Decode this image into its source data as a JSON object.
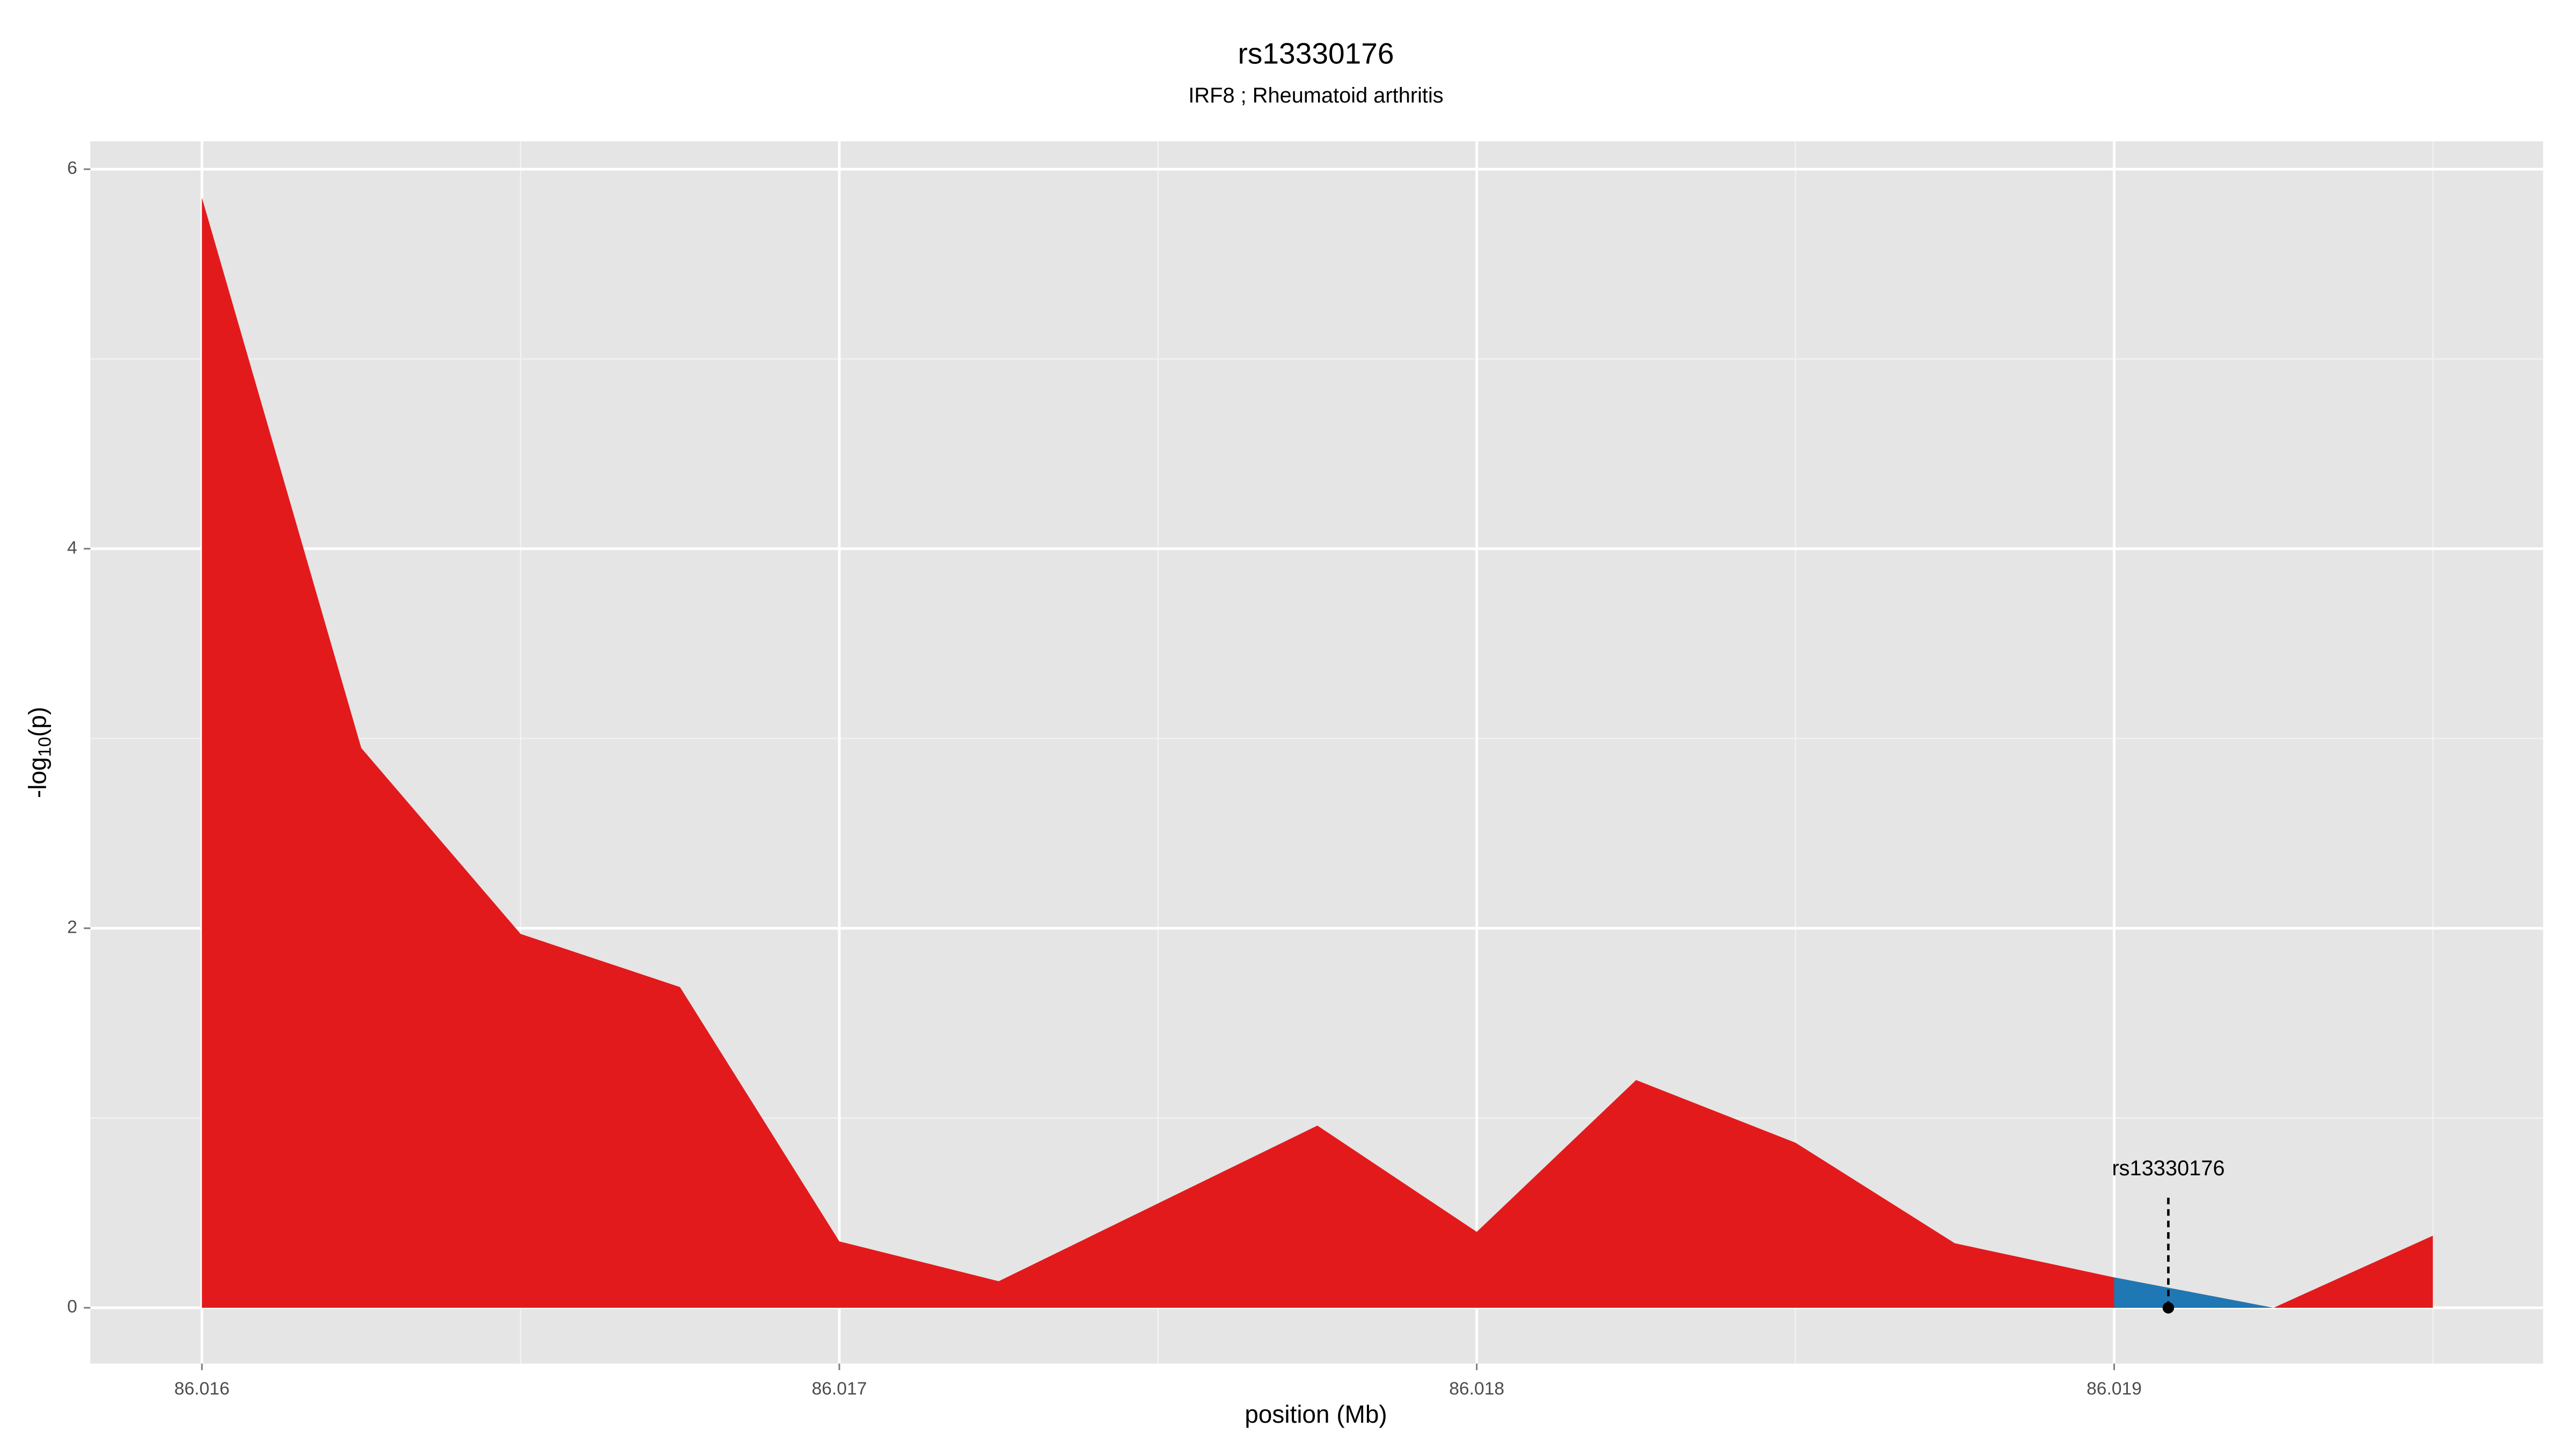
{
  "chart_data": {
    "type": "area",
    "title": "rs13330176",
    "subtitle": "IRF8 ; Rheumatoid arthritis",
    "x_label": "position (Mb)",
    "y_label": "-log",
    "y_label_sub": "10",
    "y_label_end": "(p)",
    "x": [
      86.016,
      86.01625,
      86.0165,
      86.01675,
      86.017,
      86.01725,
      86.0175,
      86.01775,
      86.018,
      86.01825,
      86.0185,
      86.01875,
      86.019,
      86.01925,
      86.0195
    ],
    "series": [
      {
        "color": "#e31a1c",
        "values": [
          5.85,
          2.95,
          1.97,
          1.69,
          0.35,
          0.14,
          0.55,
          0.96,
          0.4,
          1.2,
          0.87,
          0.34,
          0.16,
          0.0,
          0.38
        ]
      },
      {
        "color": "#1f78b4",
        "values": [
          null,
          null,
          null,
          null,
          null,
          null,
          null,
          null,
          null,
          null,
          null,
          null,
          0.16,
          0.0,
          null
        ]
      }
    ],
    "annotation": {
      "text": "rs13330176",
      "x": 86.019085,
      "y": 0
    },
    "xlim": [
      86.015825,
      86.019673
    ],
    "ylim": [
      -0.294,
      6.147
    ],
    "xticks": [
      86.016,
      86.017,
      86.018,
      86.019
    ],
    "yticks": [
      0,
      2,
      4,
      6
    ],
    "grid": true
  }
}
